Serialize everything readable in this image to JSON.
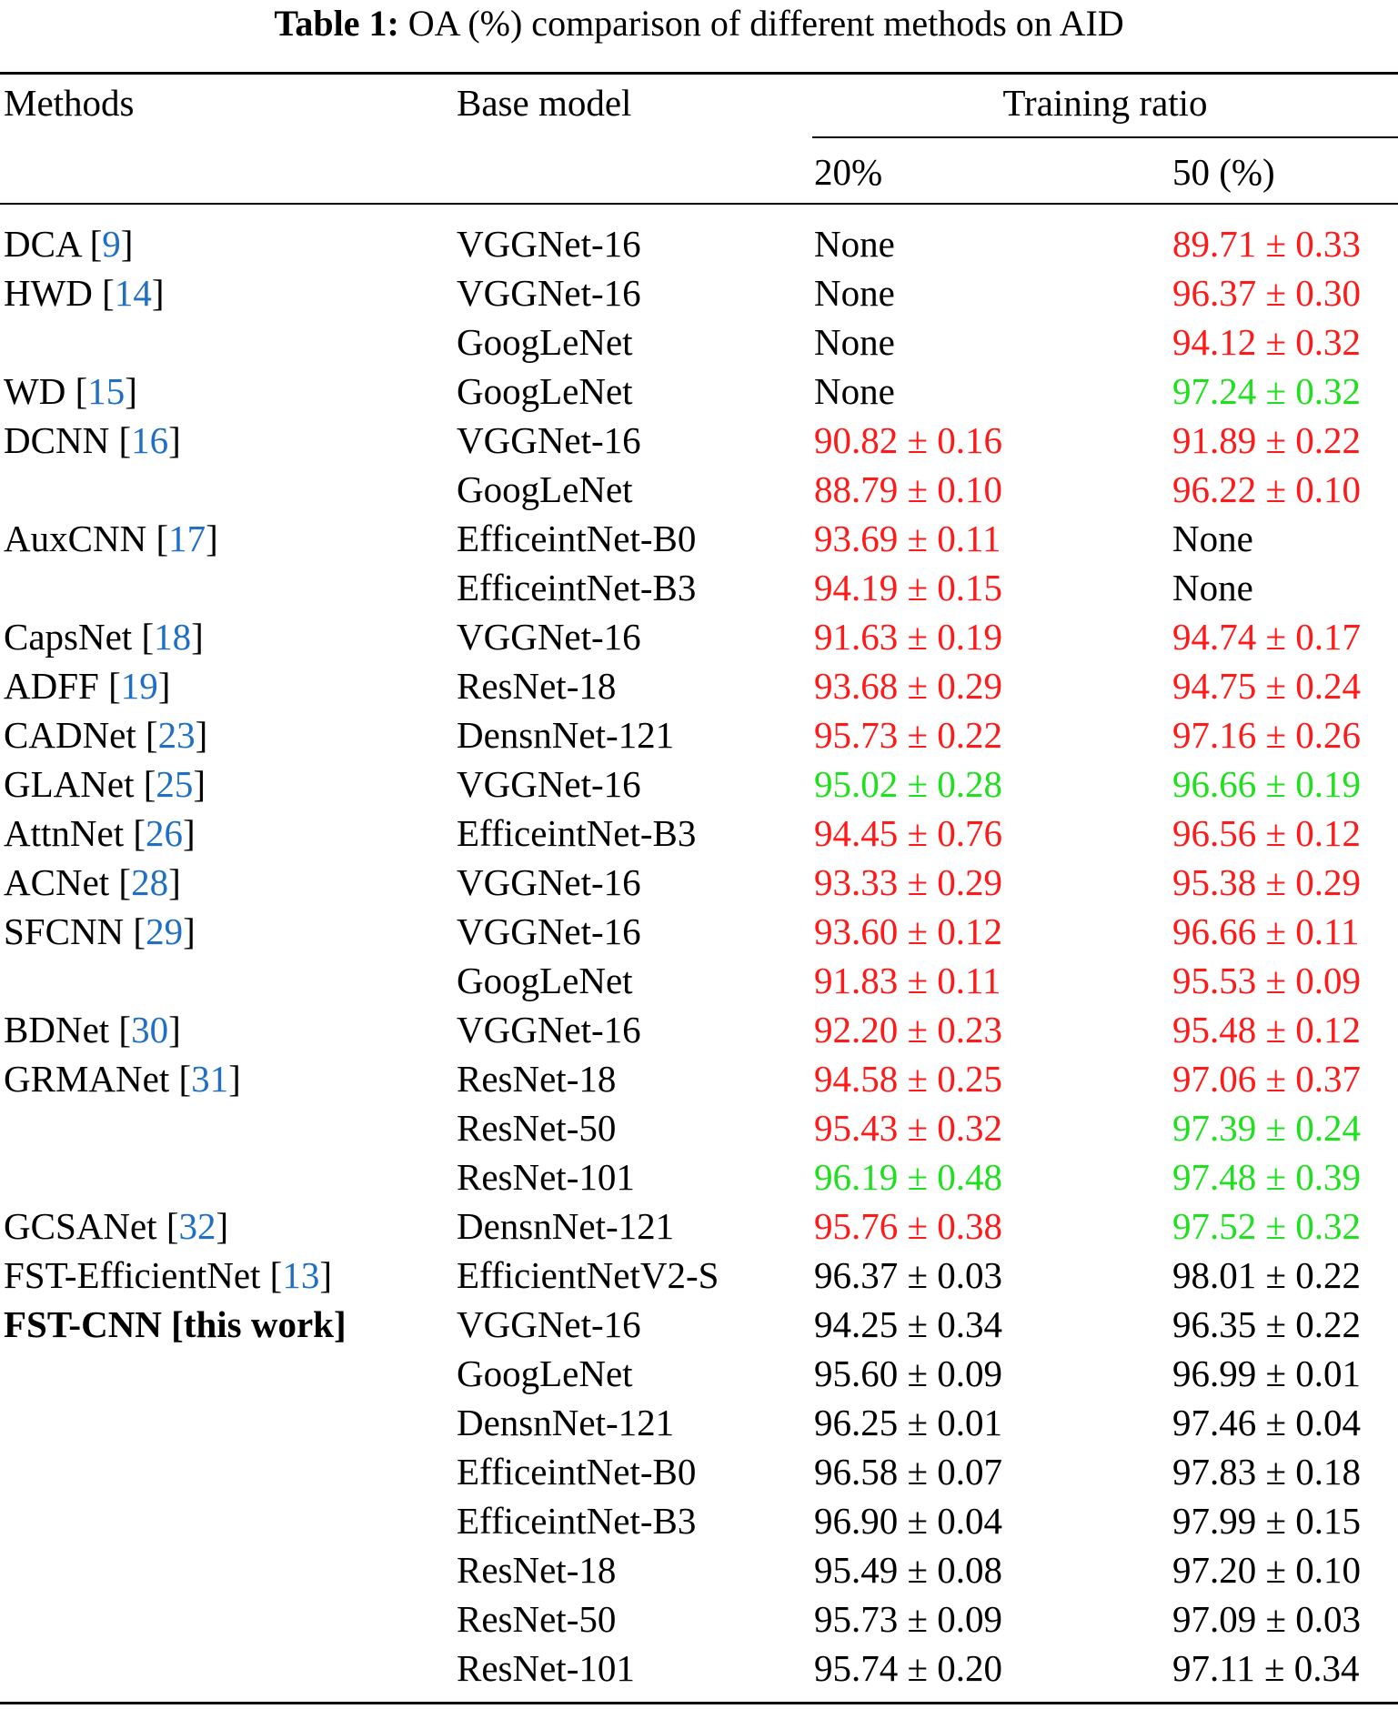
{
  "caption": {
    "label": "Table 1:",
    "text": "OA (%) comparison of different methods on AID"
  },
  "colors": {
    "red": "#ff1a1a",
    "green": "#1fe01f",
    "black": "#000000",
    "reference": "#1f6fc4"
  },
  "header": {
    "methods": "Methods",
    "base_model": "Base model",
    "training_ratio": "Training ratio",
    "ratio_20": "20%",
    "ratio_50": "50 (%)"
  },
  "rows": [
    {
      "method": "DCA",
      "ref": "9",
      "base": "VGGNet-16",
      "r20": "None",
      "r20_color": "black",
      "r50": "89.71 ± 0.33",
      "r50_color": "red"
    },
    {
      "method": "HWD",
      "ref": "14",
      "base": "VGGNet-16",
      "r20": "None",
      "r20_color": "black",
      "r50": "96.37 ± 0.30",
      "r50_color": "red"
    },
    {
      "method": "",
      "ref": "",
      "base": "GoogLeNet",
      "r20": "None",
      "r20_color": "black",
      "r50": "94.12 ± 0.32",
      "r50_color": "red"
    },
    {
      "method": "WD",
      "ref": "15",
      "base": "GoogLeNet",
      "r20": "None",
      "r20_color": "black",
      "r50": "97.24 ± 0.32",
      "r50_color": "green"
    },
    {
      "method": "DCNN",
      "ref": "16",
      "base": "VGGNet-16",
      "r20": "90.82 ± 0.16",
      "r20_color": "red",
      "r50": "91.89 ± 0.22",
      "r50_color": "red"
    },
    {
      "method": "",
      "ref": "",
      "base": "GoogLeNet",
      "r20": "88.79 ± 0.10",
      "r20_color": "red",
      "r50": "96.22 ± 0.10",
      "r50_color": "red"
    },
    {
      "method": "AuxCNN",
      "ref": "17",
      "base": "EfficeintNet-B0",
      "r20": "93.69 ± 0.11",
      "r20_color": "red",
      "r50": "None",
      "r50_color": "black"
    },
    {
      "method": "",
      "ref": "",
      "base": "EfficeintNet-B3",
      "r20": "94.19 ± 0.15",
      "r20_color": "red",
      "r50": "None",
      "r50_color": "black"
    },
    {
      "method": "CapsNet",
      "ref": "18",
      "base": "VGGNet-16",
      "r20": "91.63 ± 0.19",
      "r20_color": "red",
      "r50": "94.74 ± 0.17",
      "r50_color": "red"
    },
    {
      "method": "ADFF",
      "ref": "19",
      "base": "ResNet-18",
      "r20": "93.68 ± 0.29",
      "r20_color": "red",
      "r50": "94.75 ± 0.24",
      "r50_color": "red"
    },
    {
      "method": "CADNet",
      "ref": "23",
      "base": "DensnNet-121",
      "r20": "95.73 ± 0.22",
      "r20_color": "red",
      "r50": "97.16 ± 0.26",
      "r50_color": "red"
    },
    {
      "method": "GLANet",
      "ref": "25",
      "base": "VGGNet-16",
      "r20": "95.02 ± 0.28",
      "r20_color": "green",
      "r50": "96.66 ± 0.19",
      "r50_color": "green"
    },
    {
      "method": "AttnNet",
      "ref": "26",
      "base": "EfficeintNet-B3",
      "r20": "94.45 ± 0.76",
      "r20_color": "red",
      "r50": "96.56 ± 0.12",
      "r50_color": "red"
    },
    {
      "method": "ACNet",
      "ref": "28",
      "base": "VGGNet-16",
      "r20": "93.33 ± 0.29",
      "r20_color": "red",
      "r50": "95.38 ± 0.29",
      "r50_color": "red"
    },
    {
      "method": "SFCNN",
      "ref": "29",
      "base": "VGGNet-16",
      "r20": "93.60 ± 0.12",
      "r20_color": "red",
      "r50": "96.66 ± 0.11",
      "r50_color": "red"
    },
    {
      "method": "",
      "ref": "",
      "base": "GoogLeNet",
      "r20": "91.83 ± 0.11",
      "r20_color": "red",
      "r50": "95.53 ± 0.09",
      "r50_color": "red"
    },
    {
      "method": "BDNet",
      "ref": "30",
      "base": "VGGNet-16",
      "r20": "92.20 ± 0.23",
      "r20_color": "red",
      "r50": "95.48 ± 0.12",
      "r50_color": "red"
    },
    {
      "method": "GRMANet",
      "ref": "31",
      "base": "ResNet-18",
      "r20": "94.58 ± 0.25",
      "r20_color": "red",
      "r50": "97.06 ± 0.37",
      "r50_color": "red"
    },
    {
      "method": "",
      "ref": "",
      "base": "ResNet-50",
      "r20": "95.43 ± 0.32",
      "r20_color": "red",
      "r50": "97.39 ± 0.24",
      "r50_color": "green"
    },
    {
      "method": "",
      "ref": "",
      "base": "ResNet-101",
      "r20": "96.19 ± 0.48",
      "r20_color": "green",
      "r50": "97.48 ± 0.39",
      "r50_color": "green"
    },
    {
      "method": "GCSANet",
      "ref": "32",
      "base": "DensnNet-121",
      "r20": "95.76 ± 0.38",
      "r20_color": "red",
      "r50": "97.52 ± 0.32",
      "r50_color": "green"
    },
    {
      "method": "FST-EfficientNet",
      "ref": "13",
      "base": "EfficientNetV2-S",
      "r20": "96.37 ± 0.03",
      "r20_color": "black",
      "r50": "98.01 ± 0.22",
      "r50_color": "black"
    },
    {
      "method": "FST-CNN [this work]",
      "ref": "",
      "bold": true,
      "base": "VGGNet-16",
      "r20": "94.25 ± 0.34",
      "r20_color": "black",
      "r50": "96.35 ± 0.22",
      "r50_color": "black"
    },
    {
      "method": "",
      "ref": "",
      "base": "GoogLeNet",
      "r20": "95.60 ± 0.09",
      "r20_color": "black",
      "r50": "96.99 ± 0.01",
      "r50_color": "black"
    },
    {
      "method": "",
      "ref": "",
      "base": "DensnNet-121",
      "r20": "96.25 ± 0.01",
      "r20_color": "black",
      "r50": "97.46 ± 0.04",
      "r50_color": "black"
    },
    {
      "method": "",
      "ref": "",
      "base": "EfficeintNet-B0",
      "r20": "96.58 ± 0.07",
      "r20_color": "black",
      "r50": "97.83 ± 0.18",
      "r50_color": "black"
    },
    {
      "method": "",
      "ref": "",
      "base": "EfficeintNet-B3",
      "r20": "96.90 ± 0.04",
      "r20_color": "black",
      "r50": "97.99 ± 0.15",
      "r50_color": "black"
    },
    {
      "method": "",
      "ref": "",
      "base": "ResNet-18",
      "r20": "95.49 ± 0.08",
      "r20_color": "black",
      "r50": "97.20 ± 0.10",
      "r50_color": "black"
    },
    {
      "method": "",
      "ref": "",
      "base": "ResNet-50",
      "r20": "95.73 ± 0.09",
      "r20_color": "black",
      "r50": "97.09 ± 0.03",
      "r50_color": "black"
    },
    {
      "method": "",
      "ref": "",
      "base": "ResNet-101",
      "r20": "95.74 ± 0.20",
      "r20_color": "black",
      "r50": "97.11 ± 0.34",
      "r50_color": "black"
    }
  ]
}
